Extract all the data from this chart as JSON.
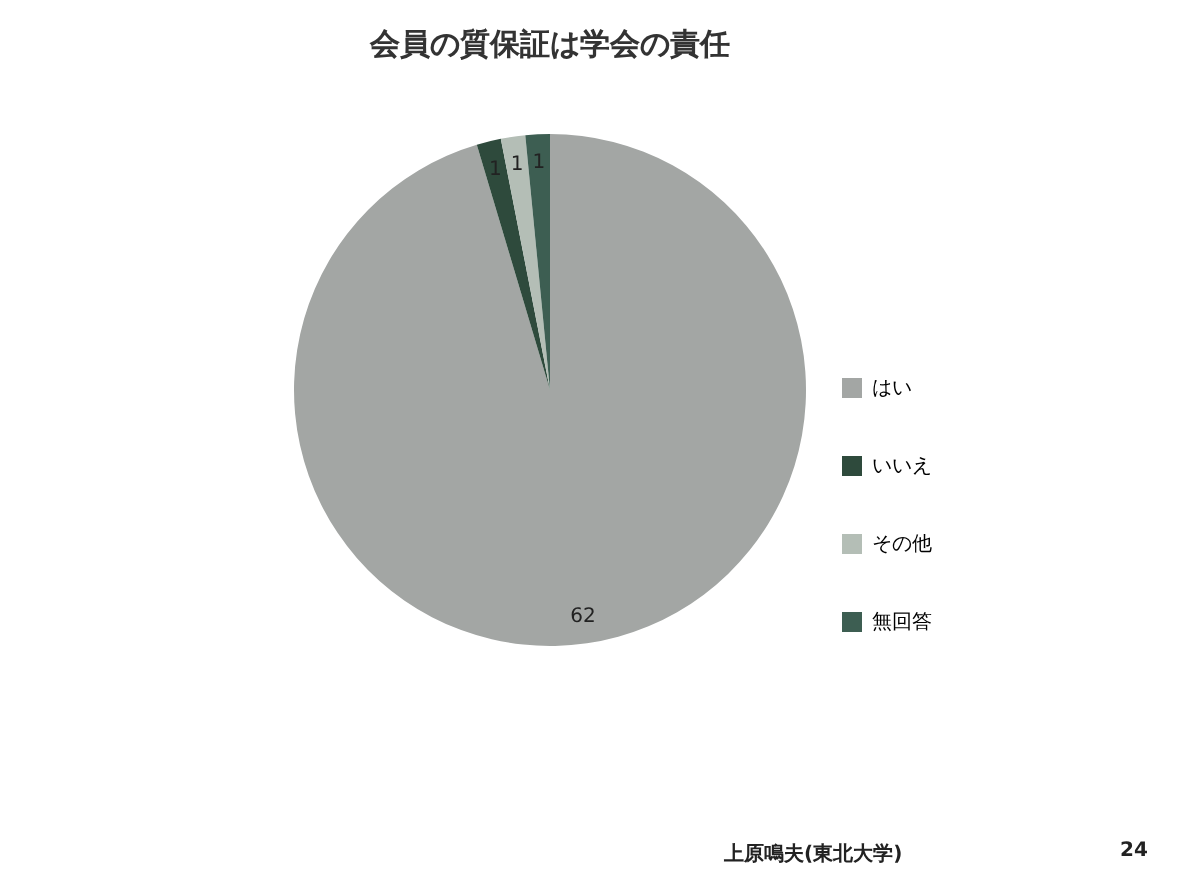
{
  "chart_data": {
    "type": "pie",
    "title": "会員の質保証は学会の責任",
    "categories": [
      "はい",
      "いいえ",
      "その他",
      "無回答"
    ],
    "values": [
      62,
      1,
      1,
      1
    ],
    "colors": [
      "#a3a6a4",
      "#2e4a3c",
      "#b4beb6",
      "#3d5e52"
    ],
    "data_labels": true,
    "legend": "right",
    "annotations": [
      "上原鳴夫(東北大学)",
      "24"
    ]
  }
}
